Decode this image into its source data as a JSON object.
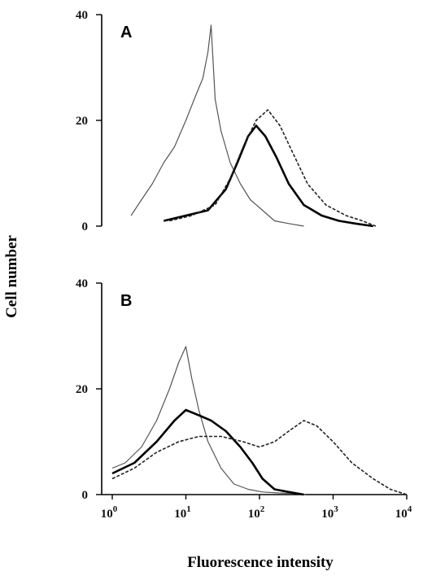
{
  "chart_data": {
    "type": "line",
    "ylabel": "Cell number",
    "xlabel": "Fluorescence intensity",
    "xscale": "log",
    "xlim": [
      1,
      10000
    ],
    "x_ticks": [
      {
        "value": 1,
        "base": "10",
        "exp": "0"
      },
      {
        "value": 10,
        "base": "10",
        "exp": "1"
      },
      {
        "value": 100,
        "base": "10",
        "exp": "2"
      },
      {
        "value": 1000,
        "base": "10",
        "exp": "3"
      },
      {
        "value": 10000,
        "base": "10",
        "exp": "4"
      }
    ],
    "grid": false,
    "legend": "none",
    "panels": [
      {
        "label": "A",
        "ylim": [
          0,
          40
        ],
        "y_ticks": [
          "0",
          "20",
          "40"
        ],
        "series": [
          {
            "style": "thin-solid",
            "color": "#555555",
            "x": [
              1.8,
              2.5,
              3.5,
              5,
              7,
              10,
              13,
              17,
              20,
              22,
              25,
              30,
              40,
              55,
              75,
              110,
              160,
              250,
              400
            ],
            "y": [
              2,
              5,
              8,
              12,
              15,
              20,
              24,
              28,
              33,
              38,
              24,
              18,
              12,
              8,
              5,
              3,
              1,
              0.5,
              0
            ]
          },
          {
            "style": "thick-solid",
            "color": "#000000",
            "x": [
              5,
              10,
              20,
              35,
              50,
              70,
              90,
              120,
              170,
              250,
              400,
              700,
              1200,
              2000,
              3500
            ],
            "y": [
              1,
              2,
              3,
              7,
              12,
              17,
              19,
              17,
              13,
              8,
              4,
              2,
              1,
              0.5,
              0
            ]
          },
          {
            "style": "dashed",
            "color": "#222222",
            "x": [
              6,
              12,
              25,
              40,
              60,
              90,
              130,
              190,
              280,
              450,
              800,
              1500,
              2500,
              3800
            ],
            "y": [
              1,
              2,
              4,
              9,
              15,
              20,
              22,
              19,
              14,
              8,
              4,
              2,
              1,
              0
            ]
          }
        ]
      },
      {
        "label": "B",
        "ylim": [
          0,
          40
        ],
        "y_ticks": [
          "0",
          "20",
          "40"
        ],
        "series": [
          {
            "style": "thin-solid",
            "color": "#555555",
            "x": [
              1,
              1.5,
              2.5,
              4,
              6,
              8,
              10,
              12,
              15,
              20,
              30,
              45,
              70,
              110,
              180,
              300,
              420
            ],
            "y": [
              5,
              6,
              9,
              14,
              20,
              25,
              28,
              22,
              16,
              10,
              5,
              2,
              1,
              0.5,
              0.3,
              0.2,
              0
            ]
          },
          {
            "style": "thick-solid",
            "color": "#000000",
            "x": [
              1,
              2,
              4,
              7,
              10,
              15,
              22,
              35,
              55,
              80,
              110,
              160,
              250,
              400
            ],
            "y": [
              4,
              6,
              10,
              14,
              16,
              15,
              14,
              12,
              9,
              6,
              3,
              1,
              0.5,
              0
            ]
          },
          {
            "style": "dashed",
            "color": "#222222",
            "x": [
              1,
              2,
              4,
              8,
              15,
              30,
              60,
              100,
              160,
              250,
              400,
              600,
              1000,
              1800,
              3500,
              6000,
              10000
            ],
            "y": [
              3,
              5,
              8,
              10,
              11,
              11,
              10,
              9,
              10,
              12,
              14,
              13,
              10,
              6,
              3,
              1,
              0
            ]
          }
        ]
      }
    ]
  }
}
